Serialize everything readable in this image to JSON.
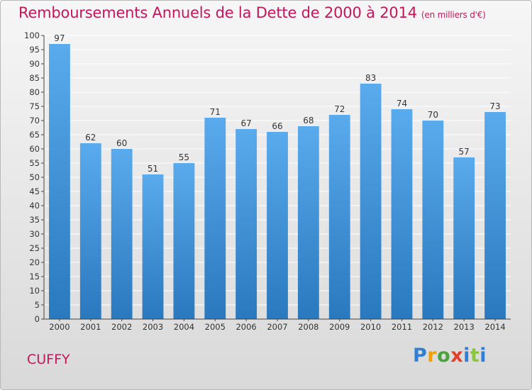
{
  "header": {
    "title": "Remboursements Annuels de la Dette de 2000 à 2014",
    "unit": "(en milliers d'€)"
  },
  "footer": {
    "city": "CUFFY",
    "logo_text": "Proxiti"
  },
  "colors": {
    "title": "#c2185b",
    "bar_top": "#5aaaee",
    "bar_bottom": "#2a78bd",
    "grid": "#ffffff"
  },
  "chart_data": {
    "type": "bar",
    "title": "Remboursements Annuels de la Dette de 2000 à 2014",
    "subtitle": "(en milliers d'€)",
    "xlabel": "",
    "ylabel": "",
    "categories": [
      "2000",
      "2001",
      "2002",
      "2003",
      "2004",
      "2005",
      "2006",
      "2007",
      "2008",
      "2009",
      "2010",
      "2011",
      "2012",
      "2013",
      "2014"
    ],
    "values": [
      97,
      62,
      60,
      51,
      55,
      71,
      67,
      66,
      68,
      72,
      83,
      74,
      70,
      57,
      73
    ],
    "ylim": [
      0,
      100
    ],
    "ytick_step": 5,
    "grid": true,
    "data_labels": true,
    "legend": "none"
  }
}
